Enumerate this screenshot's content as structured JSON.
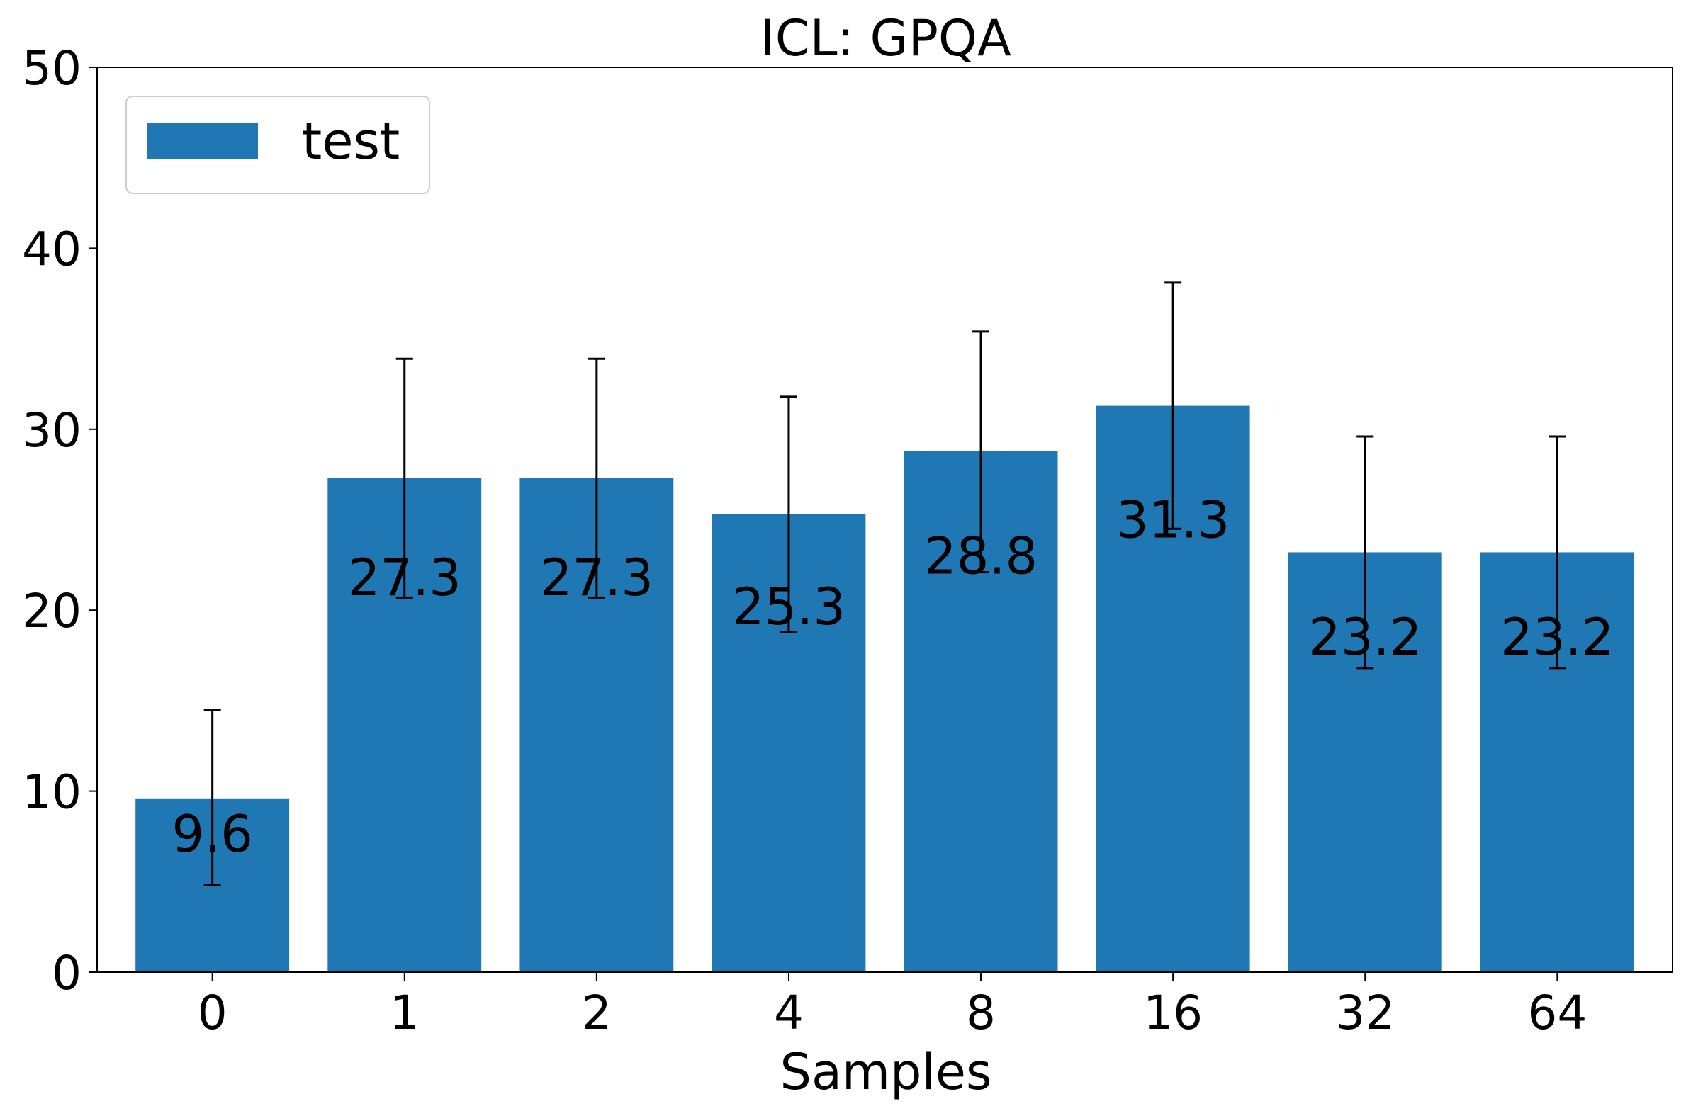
{
  "chart_data": {
    "type": "bar",
    "title": "ICL: GPQA",
    "xlabel": "Samples",
    "ylabel": "",
    "categories": [
      "0",
      "1",
      "2",
      "4",
      "8",
      "16",
      "32",
      "64"
    ],
    "series": [
      {
        "name": "test",
        "values": [
          9.6,
          27.3,
          27.3,
          25.3,
          28.8,
          31.3,
          23.2,
          23.2
        ],
        "error_low": [
          4.8,
          20.7,
          20.7,
          18.8,
          22.1,
          24.5,
          16.8,
          16.8
        ],
        "error_high": [
          14.5,
          33.9,
          33.9,
          31.8,
          35.4,
          38.1,
          29.6,
          29.6
        ],
        "data_labels": [
          "9.6",
          "27.3",
          "27.3",
          "25.3",
          "28.8",
          "31.3",
          "23.2",
          "23.2"
        ]
      }
    ],
    "ylim": [
      0,
      50
    ],
    "yticks": [
      "0",
      "10",
      "20",
      "30",
      "40",
      "50"
    ],
    "grid": false,
    "legend_position": "top-left",
    "colors": {
      "bar": "#1f77b4",
      "error_bar": "#000000"
    }
  }
}
